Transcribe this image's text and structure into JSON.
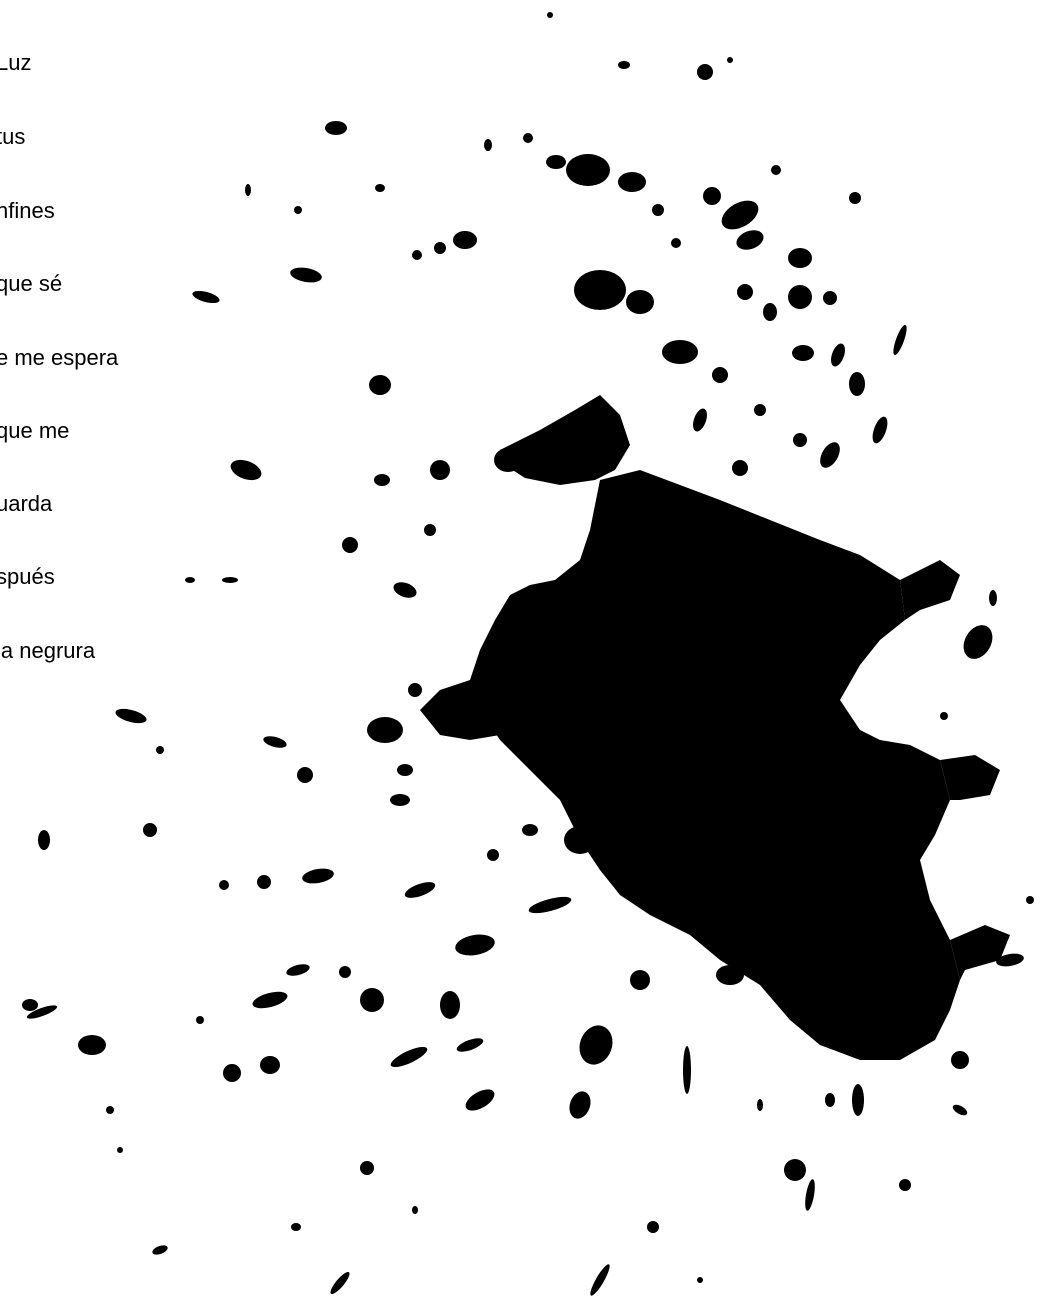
{
  "poem": {
    "lines": [
      "Luz",
      "tus",
      "nfines",
      "que sé",
      "e me espera",
      "que me",
      "uarda",
      "spués",
      "la negrura"
    ]
  },
  "artwork": {
    "name": "ink-splatter",
    "ink_color": "#000000",
    "background_color": "#ffffff"
  }
}
